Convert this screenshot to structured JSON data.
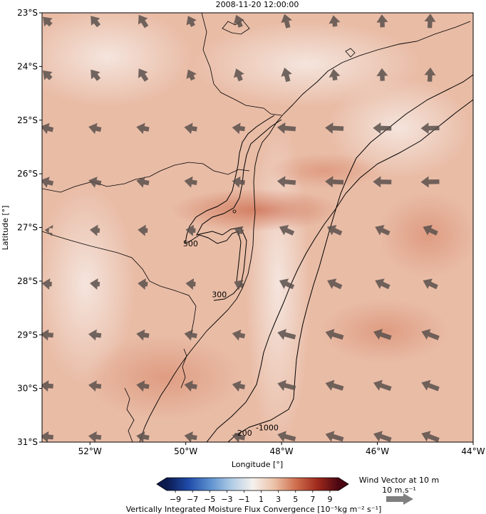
{
  "title": "2008-11-20 12:00:00",
  "map": {
    "lon_range": [
      -53,
      -44
    ],
    "lat_range": [
      -31,
      -23
    ],
    "xlabel": "Longitude [°]",
    "ylabel": "Latitude [°]",
    "xticks": [
      {
        "value": -52,
        "label": "52°W"
      },
      {
        "value": -50,
        "label": "50°W"
      },
      {
        "value": -48,
        "label": "48°W"
      },
      {
        "value": -46,
        "label": "46°W"
      },
      {
        "value": -44,
        "label": "44°W"
      }
    ],
    "yticks": [
      {
        "value": -23,
        "label": "23°S"
      },
      {
        "value": -24,
        "label": "24°S"
      },
      {
        "value": -25,
        "label": "25°S"
      },
      {
        "value": -26,
        "label": "26°S"
      },
      {
        "value": -27,
        "label": "27°S"
      },
      {
        "value": -28,
        "label": "28°S"
      },
      {
        "value": -29,
        "label": "29°S"
      },
      {
        "value": -30,
        "label": "30°S"
      },
      {
        "value": -31,
        "label": "31°S"
      }
    ],
    "contour_labels": [
      {
        "text": "500",
        "lon": -49.9,
        "lat": -27.35
      },
      {
        "text": "300",
        "lon": -49.3,
        "lat": -28.3
      },
      {
        "text": "-200",
        "lon": -48.8,
        "lat": -30.88
      },
      {
        "text": "-1000",
        "lon": -48.3,
        "lat": -30.78
      }
    ]
  },
  "colorbar": {
    "label": "Vertically Integrated Moisture Flux Convergence [10⁻⁵kg m⁻² s⁻¹]",
    "ticks": [
      "−9",
      "−7",
      "−5",
      "−3",
      "−1",
      "1",
      "3",
      "5",
      "7",
      "9"
    ],
    "range": [
      -10,
      10
    ],
    "extend": "both",
    "colormap": [
      "#0b1a4f",
      "#1f4aa8",
      "#5b8fcf",
      "#aecbe4",
      "#f5f1ee",
      "#ecc2a8",
      "#cf7050",
      "#a02a1c",
      "#4b0612"
    ]
  },
  "quiver_key": {
    "title": "Wind Vector at 10 m",
    "label": "10 m.s⁻¹",
    "color": "#7f7f7f"
  },
  "colors": {
    "arrow": "#5a504c",
    "field_base": "#e8b8a2",
    "land_outline": "#000000"
  }
}
